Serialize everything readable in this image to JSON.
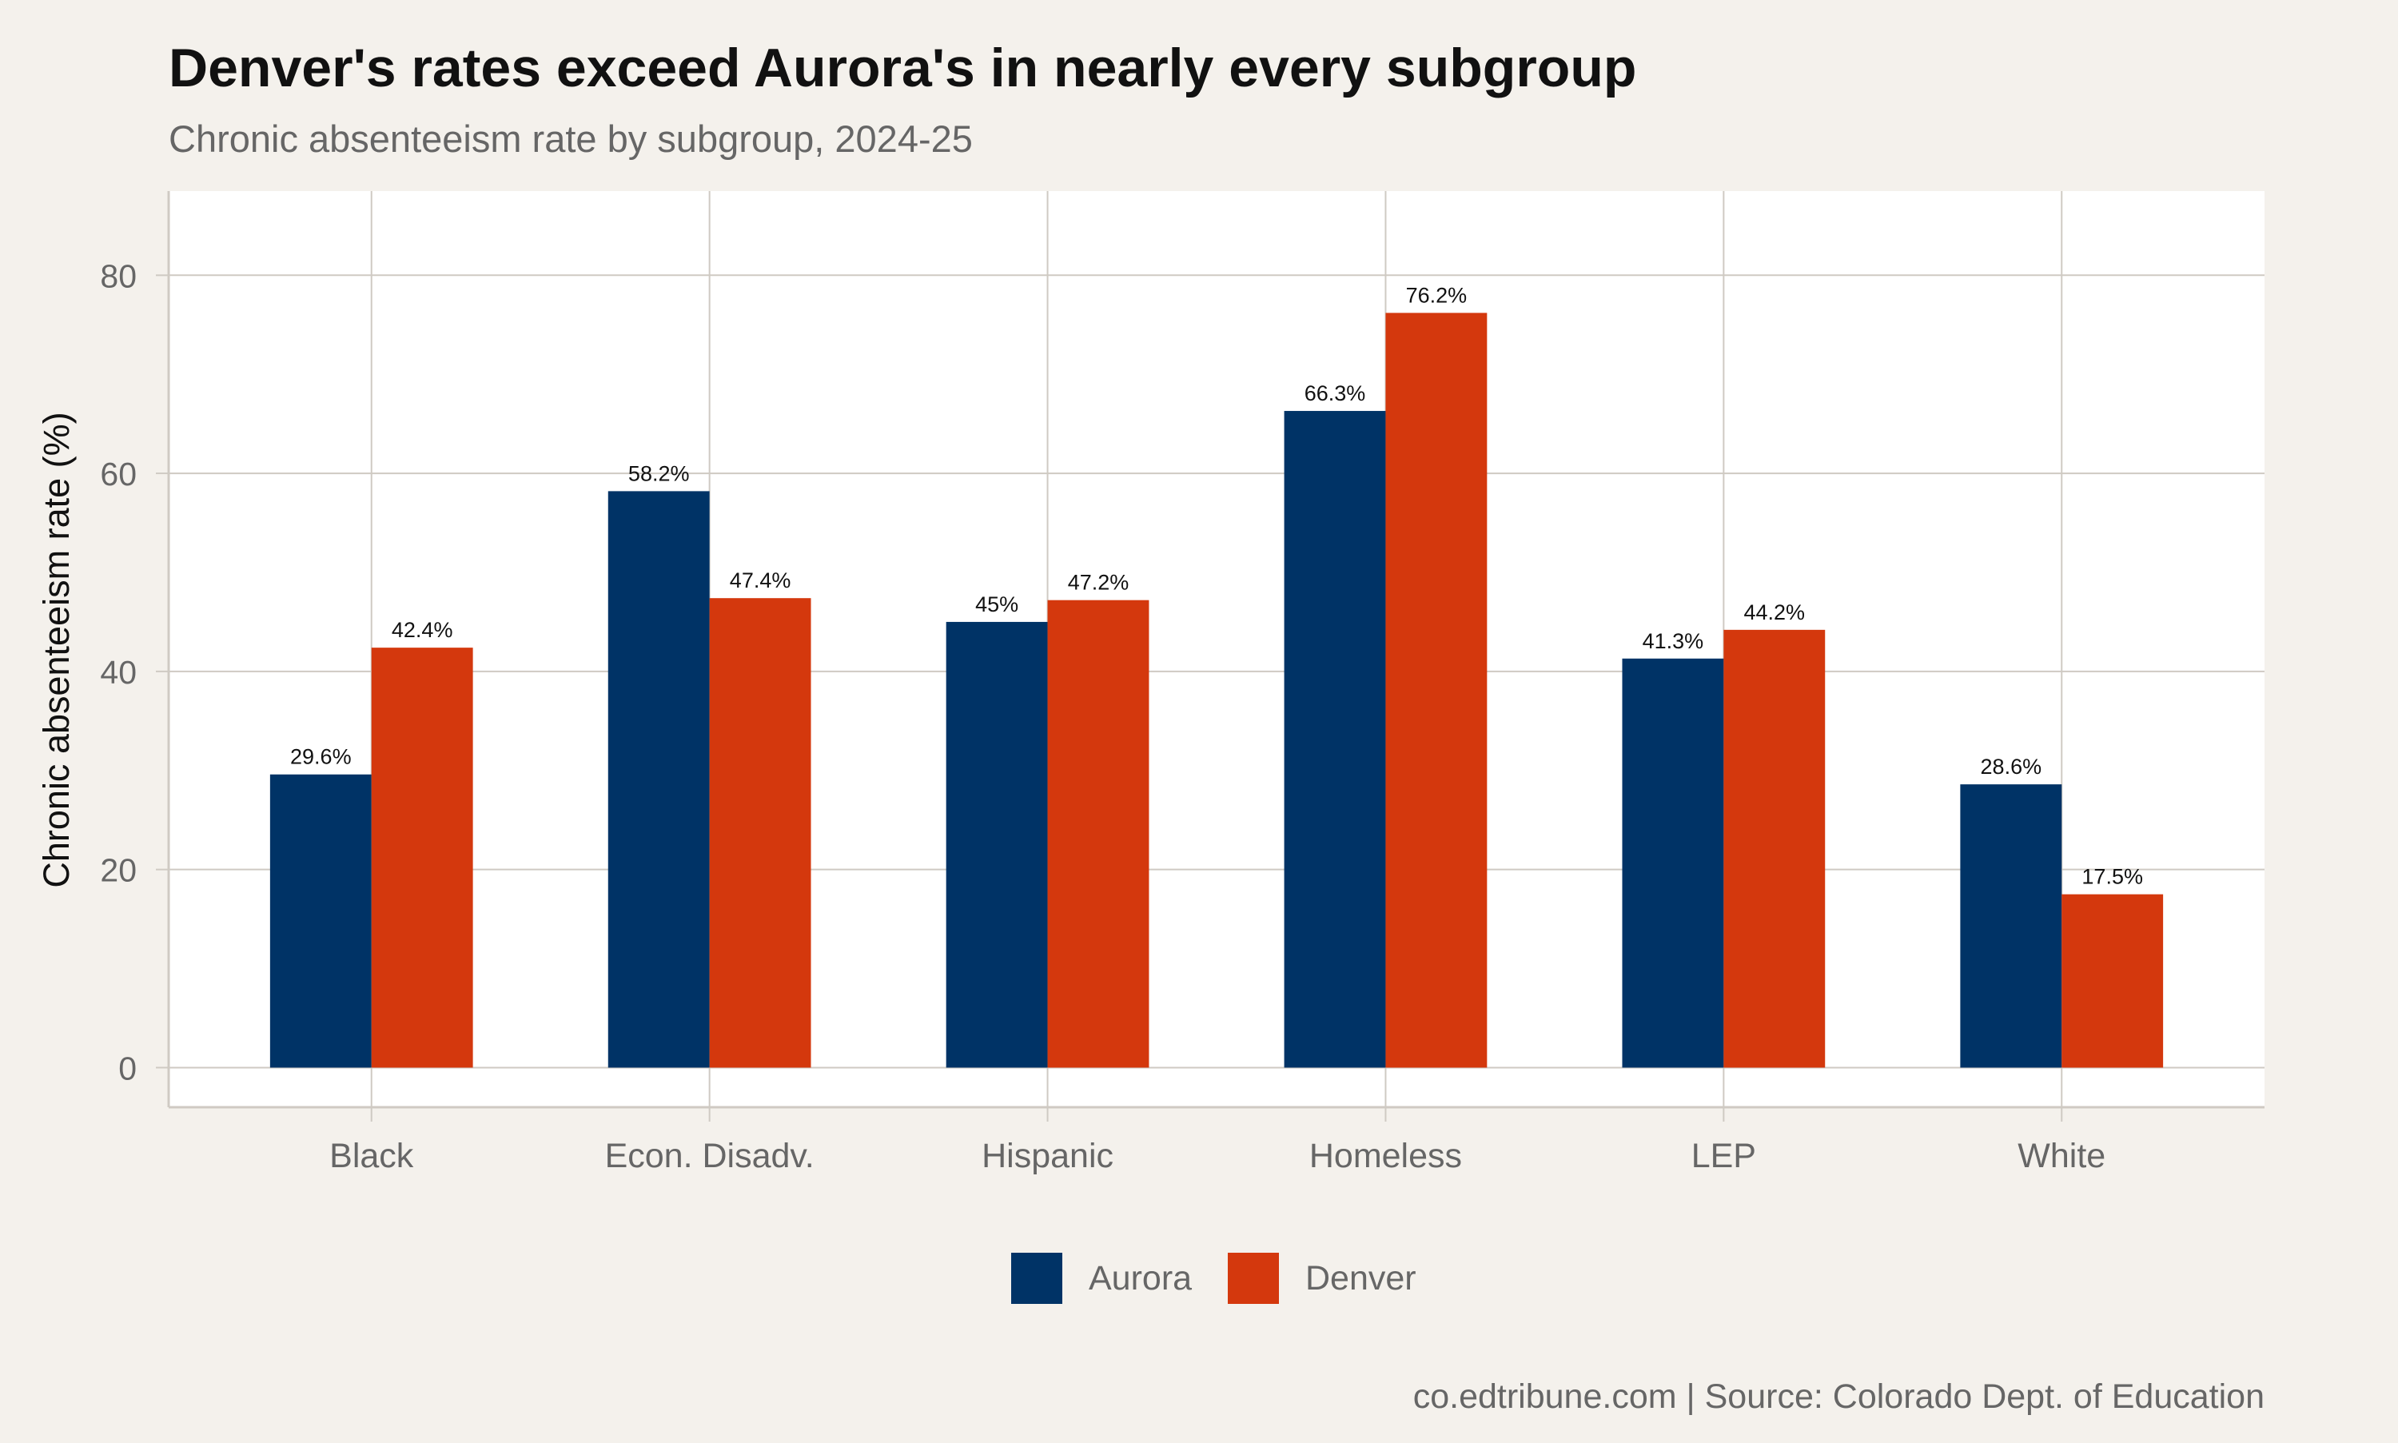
{
  "chart_data": {
    "type": "bar",
    "title": "Denver's rates exceed Aurora's in nearly every subgroup",
    "subtitle": "Chronic absenteeism rate by subgroup, 2024-25",
    "xlabel": "",
    "ylabel": "Chronic absenteeism rate (%)",
    "ylim": [
      -4,
      88.5
    ],
    "yticks": [
      0,
      20,
      40,
      60,
      80
    ],
    "grid": true,
    "legend_position": "bottom",
    "categories": [
      "Black",
      "Econ. Disadv.",
      "Hispanic",
      "Homeless",
      "LEP",
      "White"
    ],
    "series": [
      {
        "name": "Aurora",
        "color": "#003366",
        "values": [
          29.6,
          58.2,
          45,
          66.3,
          41.3,
          28.6
        ],
        "labels": [
          "29.6%",
          "58.2%",
          "45%",
          "66.3%",
          "41.3%",
          "28.6%"
        ]
      },
      {
        "name": "Denver",
        "color": "#d4380d",
        "values": [
          42.4,
          47.4,
          47.2,
          76.2,
          44.2,
          17.5
        ],
        "labels": [
          "42.4%",
          "47.4%",
          "47.2%",
          "76.2%",
          "44.2%",
          "17.5%"
        ]
      }
    ],
    "caption": "co.edtribune.com | Source: Colorado Dept. of Education",
    "colors": {
      "background": "#f4f1ec",
      "plot_background": "#ffffff",
      "grid": "#cfcac3",
      "title": "#111111",
      "muted_text": "#666666"
    }
  }
}
